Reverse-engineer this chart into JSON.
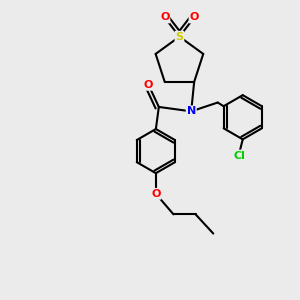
{
  "bg_color": "#ebebeb",
  "atom_colors": {
    "S": "#cccc00",
    "O": "#ff0000",
    "N": "#0000ff",
    "Cl": "#00cc00",
    "C": "#000000"
  },
  "line_color": "#000000",
  "line_width": 1.5
}
